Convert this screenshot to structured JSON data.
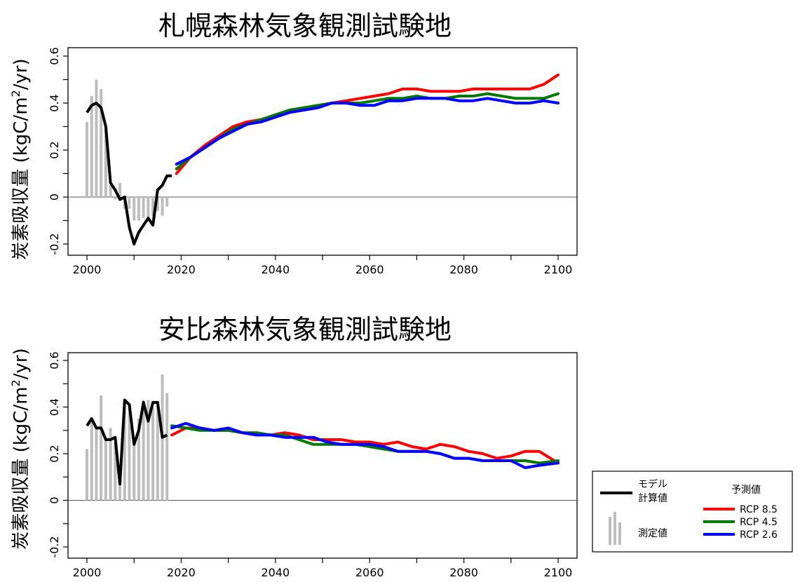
{
  "chart_data": [
    {
      "type": "line",
      "title": "札幌森林気象観測試験地",
      "ylabel_main": "炭素吸収量 (kgC/m",
      "ylabel_sup": "2",
      "ylabel_end": "/yr)",
      "xlim": [
        2000,
        2100
      ],
      "ylim": [
        -0.2,
        0.6
      ],
      "xticks": [
        2000,
        2020,
        2040,
        2060,
        2080,
        2100
      ],
      "yticks": [
        -0.2,
        0,
        0.2,
        0.4,
        0.6
      ],
      "ytick_labels": [
        "-0.2",
        "0",
        "0.2",
        "0.4",
        "0.6"
      ],
      "colors": {
        "model": "#000000",
        "measured": "#bdbdbd",
        "rcp85": "#ff0000",
        "rcp45": "#007a00",
        "rcp26": "#0000ff"
      },
      "measured": {
        "x": [
          2000,
          2001,
          2002,
          2003,
          2004,
          2005,
          2006,
          2007,
          2008,
          2009,
          2010,
          2011,
          2012,
          2013,
          2014,
          2015,
          2016,
          2017
        ],
        "values": [
          0.32,
          0.43,
          0.5,
          0.46,
          0.3,
          0.05,
          -0.01,
          0.06,
          -0.05,
          -0.05,
          -0.1,
          -0.1,
          -0.09,
          -0.1,
          -0.08,
          -0.06,
          -0.08,
          -0.04
        ]
      },
      "model": {
        "x": [
          2000,
          2001,
          2002,
          2003,
          2004,
          2005,
          2006,
          2007,
          2008,
          2009,
          2010,
          2011,
          2012,
          2013,
          2014,
          2015,
          2016,
          2017,
          2018
        ],
        "values": [
          0.36,
          0.39,
          0.4,
          0.38,
          0.3,
          0.06,
          0.03,
          -0.01,
          0.0,
          -0.13,
          -0.2,
          -0.15,
          -0.12,
          -0.09,
          -0.12,
          0.03,
          0.05,
          0.09,
          0.09
        ]
      },
      "series": [
        {
          "key": "rcp85",
          "x": [
            2019,
            2022,
            2025,
            2028,
            2031,
            2034,
            2037,
            2040,
            2043,
            2046,
            2049,
            2052,
            2055,
            2058,
            2061,
            2064,
            2067,
            2070,
            2073,
            2076,
            2079,
            2082,
            2085,
            2088,
            2091,
            2094,
            2097,
            2100
          ],
          "values": [
            0.1,
            0.17,
            0.22,
            0.26,
            0.3,
            0.32,
            0.33,
            0.35,
            0.37,
            0.38,
            0.39,
            0.4,
            0.41,
            0.42,
            0.43,
            0.44,
            0.46,
            0.46,
            0.45,
            0.45,
            0.45,
            0.46,
            0.46,
            0.46,
            0.46,
            0.46,
            0.48,
            0.52
          ]
        },
        {
          "key": "rcp45",
          "x": [
            2019,
            2022,
            2025,
            2028,
            2031,
            2034,
            2037,
            2040,
            2043,
            2046,
            2049,
            2052,
            2055,
            2058,
            2061,
            2064,
            2067,
            2070,
            2073,
            2076,
            2079,
            2082,
            2085,
            2088,
            2091,
            2094,
            2097,
            2100
          ],
          "values": [
            0.12,
            0.17,
            0.21,
            0.25,
            0.29,
            0.31,
            0.33,
            0.35,
            0.37,
            0.38,
            0.39,
            0.4,
            0.4,
            0.4,
            0.41,
            0.42,
            0.42,
            0.43,
            0.42,
            0.42,
            0.43,
            0.43,
            0.44,
            0.43,
            0.42,
            0.42,
            0.42,
            0.44
          ]
        },
        {
          "key": "rcp26",
          "x": [
            2019,
            2022,
            2025,
            2028,
            2031,
            2034,
            2037,
            2040,
            2043,
            2046,
            2049,
            2052,
            2055,
            2058,
            2061,
            2064,
            2067,
            2070,
            2073,
            2076,
            2079,
            2082,
            2085,
            2088,
            2091,
            2094,
            2097,
            2100
          ],
          "values": [
            0.14,
            0.17,
            0.21,
            0.25,
            0.28,
            0.31,
            0.32,
            0.34,
            0.36,
            0.37,
            0.38,
            0.4,
            0.4,
            0.39,
            0.39,
            0.41,
            0.41,
            0.42,
            0.42,
            0.42,
            0.41,
            0.41,
            0.42,
            0.41,
            0.4,
            0.4,
            0.41,
            0.4
          ]
        }
      ]
    },
    {
      "type": "line",
      "title": "安比森林気象観測試験地",
      "ylabel_main": "炭素吸収量 (kgC/m",
      "ylabel_sup": "2",
      "ylabel_end": "/yr)",
      "xlim": [
        2000,
        2100
      ],
      "ylim": [
        -0.2,
        0.6
      ],
      "xticks": [
        2000,
        2020,
        2040,
        2060,
        2080,
        2100
      ],
      "yticks": [
        -0.2,
        0,
        0.2,
        0.4,
        0.6
      ],
      "ytick_labels": [
        "-0.2",
        "0",
        "0.2",
        "0.4",
        "0.6"
      ],
      "colors": {
        "model": "#000000",
        "measured": "#bdbdbd",
        "rcp85": "#ff0000",
        "rcp45": "#007a00",
        "rcp26": "#0000ff"
      },
      "measured": {
        "x": [
          2000,
          2001,
          2002,
          2003,
          2004,
          2005,
          2006,
          2007,
          2008,
          2009,
          2010,
          2011,
          2012,
          2013,
          2014,
          2015,
          2016,
          2017
        ],
        "values": [
          0.22,
          0.35,
          0.31,
          0.45,
          0.26,
          0.31,
          0.24,
          0.1,
          0.43,
          0.4,
          0.25,
          0.35,
          0.43,
          0.43,
          0.4,
          0.42,
          0.54,
          0.46
        ]
      },
      "model": {
        "x": [
          2000,
          2001,
          2002,
          2003,
          2004,
          2005,
          2006,
          2007,
          2008,
          2009,
          2010,
          2011,
          2012,
          2013,
          2014,
          2015,
          2016,
          2017
        ],
        "values": [
          0.32,
          0.35,
          0.31,
          0.31,
          0.26,
          0.26,
          0.27,
          0.07,
          0.43,
          0.41,
          0.24,
          0.3,
          0.42,
          0.34,
          0.42,
          0.42,
          0.27,
          0.28
        ]
      },
      "series": [
        {
          "key": "rcp85",
          "x": [
            2018,
            2021,
            2024,
            2027,
            2030,
            2033,
            2036,
            2039,
            2042,
            2045,
            2048,
            2051,
            2054,
            2057,
            2060,
            2063,
            2066,
            2069,
            2072,
            2075,
            2078,
            2081,
            2084,
            2087,
            2090,
            2093,
            2096,
            2100
          ],
          "values": [
            0.28,
            0.31,
            0.31,
            0.3,
            0.3,
            0.29,
            0.28,
            0.28,
            0.29,
            0.28,
            0.26,
            0.26,
            0.26,
            0.25,
            0.25,
            0.24,
            0.25,
            0.23,
            0.22,
            0.24,
            0.23,
            0.21,
            0.2,
            0.18,
            0.19,
            0.21,
            0.21,
            0.16
          ]
        },
        {
          "key": "rcp45",
          "x": [
            2018,
            2021,
            2024,
            2027,
            2030,
            2033,
            2036,
            2039,
            2042,
            2045,
            2048,
            2051,
            2054,
            2057,
            2060,
            2063,
            2066,
            2069,
            2072,
            2075,
            2078,
            2081,
            2084,
            2087,
            2090,
            2093,
            2096,
            2100
          ],
          "values": [
            0.32,
            0.31,
            0.3,
            0.3,
            0.3,
            0.29,
            0.29,
            0.28,
            0.28,
            0.26,
            0.24,
            0.24,
            0.24,
            0.24,
            0.23,
            0.22,
            0.21,
            0.21,
            0.21,
            0.2,
            0.18,
            0.18,
            0.17,
            0.17,
            0.17,
            0.17,
            0.16,
            0.17
          ]
        },
        {
          "key": "rcp26",
          "x": [
            2018,
            2021,
            2024,
            2027,
            2030,
            2033,
            2036,
            2039,
            2042,
            2045,
            2048,
            2051,
            2054,
            2057,
            2060,
            2063,
            2066,
            2069,
            2072,
            2075,
            2078,
            2081,
            2084,
            2087,
            2090,
            2093,
            2096,
            2100
          ],
          "values": [
            0.31,
            0.33,
            0.31,
            0.3,
            0.31,
            0.29,
            0.28,
            0.28,
            0.27,
            0.27,
            0.27,
            0.25,
            0.24,
            0.24,
            0.24,
            0.23,
            0.21,
            0.21,
            0.21,
            0.2,
            0.18,
            0.18,
            0.17,
            0.17,
            0.17,
            0.14,
            0.15,
            0.16
          ]
        }
      ]
    }
  ],
  "legend": {
    "model_label_1": "モデル",
    "model_label_2": "計算値",
    "measured_label": "測定値",
    "forecast_title": "予測値",
    "rcp85": "RCP 8.5",
    "rcp45": "RCP 4.5",
    "rcp26": "RCP 2.6"
  }
}
